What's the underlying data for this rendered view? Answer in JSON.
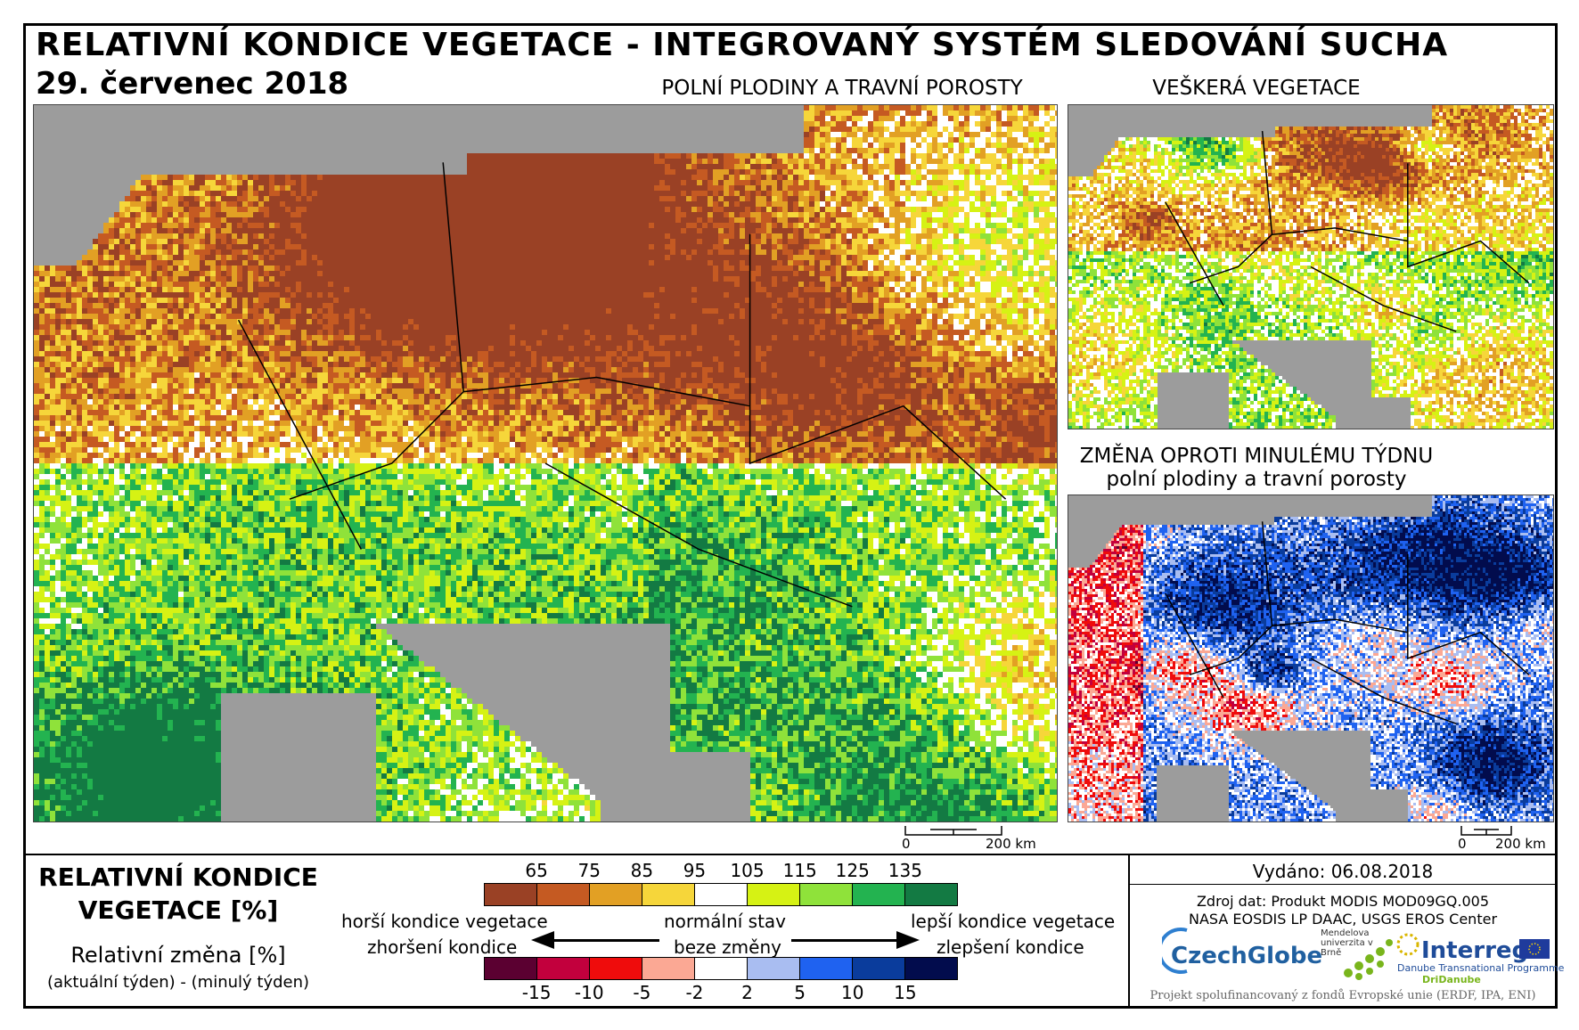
{
  "header": {
    "title": "RELATIVNÍ KONDICE VEGETACE - INTEGROVANÝ SYSTÉM SLEDOVÁNÍ SUCHA",
    "date": "29. červenec 2018"
  },
  "maps": {
    "main_title": "POLNÍ PLODINY A TRAVNÍ POROSTY",
    "all_vegetation_title": "VEŠKERÁ VEGETACE",
    "change_title_line1": "ZMĚNA OPROTI MINULÉMU TÝDNU",
    "change_title_line2": "polní plodiny a travní porosty",
    "scale_zero": "0",
    "scale_main": "200 km",
    "scale_small": "200 km"
  },
  "legend": {
    "title_line1": "RELATIVNÍ KONDICE",
    "title_line2": "VEGETACE [%]",
    "sub_line1": "Relativní změna [%]",
    "sub_line2": "(aktuální týden) - (minulý týden)",
    "condition_ticks": [
      "65",
      "75",
      "85",
      "95",
      "105",
      "115",
      "125",
      "135"
    ],
    "condition_colors": [
      "#9a4125",
      "#c55a22",
      "#e2a024",
      "#f6d63a",
      "#ffffff",
      "#d6f214",
      "#8fe23a",
      "#23b350",
      "#137a43"
    ],
    "change_ticks": [
      "-15",
      "-10",
      "-5",
      "-2",
      "2",
      "5",
      "10",
      "15"
    ],
    "change_colors": [
      "#5b0031",
      "#c2003d",
      "#ef0c0c",
      "#fba894",
      "#ffffff",
      "#a9bdf1",
      "#1f62f0",
      "#0a3c9c",
      "#020c4d"
    ],
    "worse_condition": "horší kondice vegetace",
    "normal_state": "normální stav",
    "better_condition": "lepší kondice vegetace",
    "worsening": "zhoršení kondice",
    "no_change": "beze změny",
    "improvement": "zlepšení kondice"
  },
  "info": {
    "issued": "Vydáno: 06.08.2018",
    "source_line1": "Zdroj dat: Produkt MODIS MOD09GQ.005",
    "source_line2": "NASA EOSDIS LP DAAC, USGS EROS Center",
    "logo_czechglobe": "CzechGlobe",
    "logo_mendel": "Mendelova univerzita v Brně",
    "logo_interreg": "Interreg",
    "logo_interreg_sub": "Danube Transnational Programme",
    "logo_dridanube": "DriDanube",
    "footer": "Projekt spolufinancovaný z fondů Evropské unie (ERDF, IPA, ENI)"
  }
}
